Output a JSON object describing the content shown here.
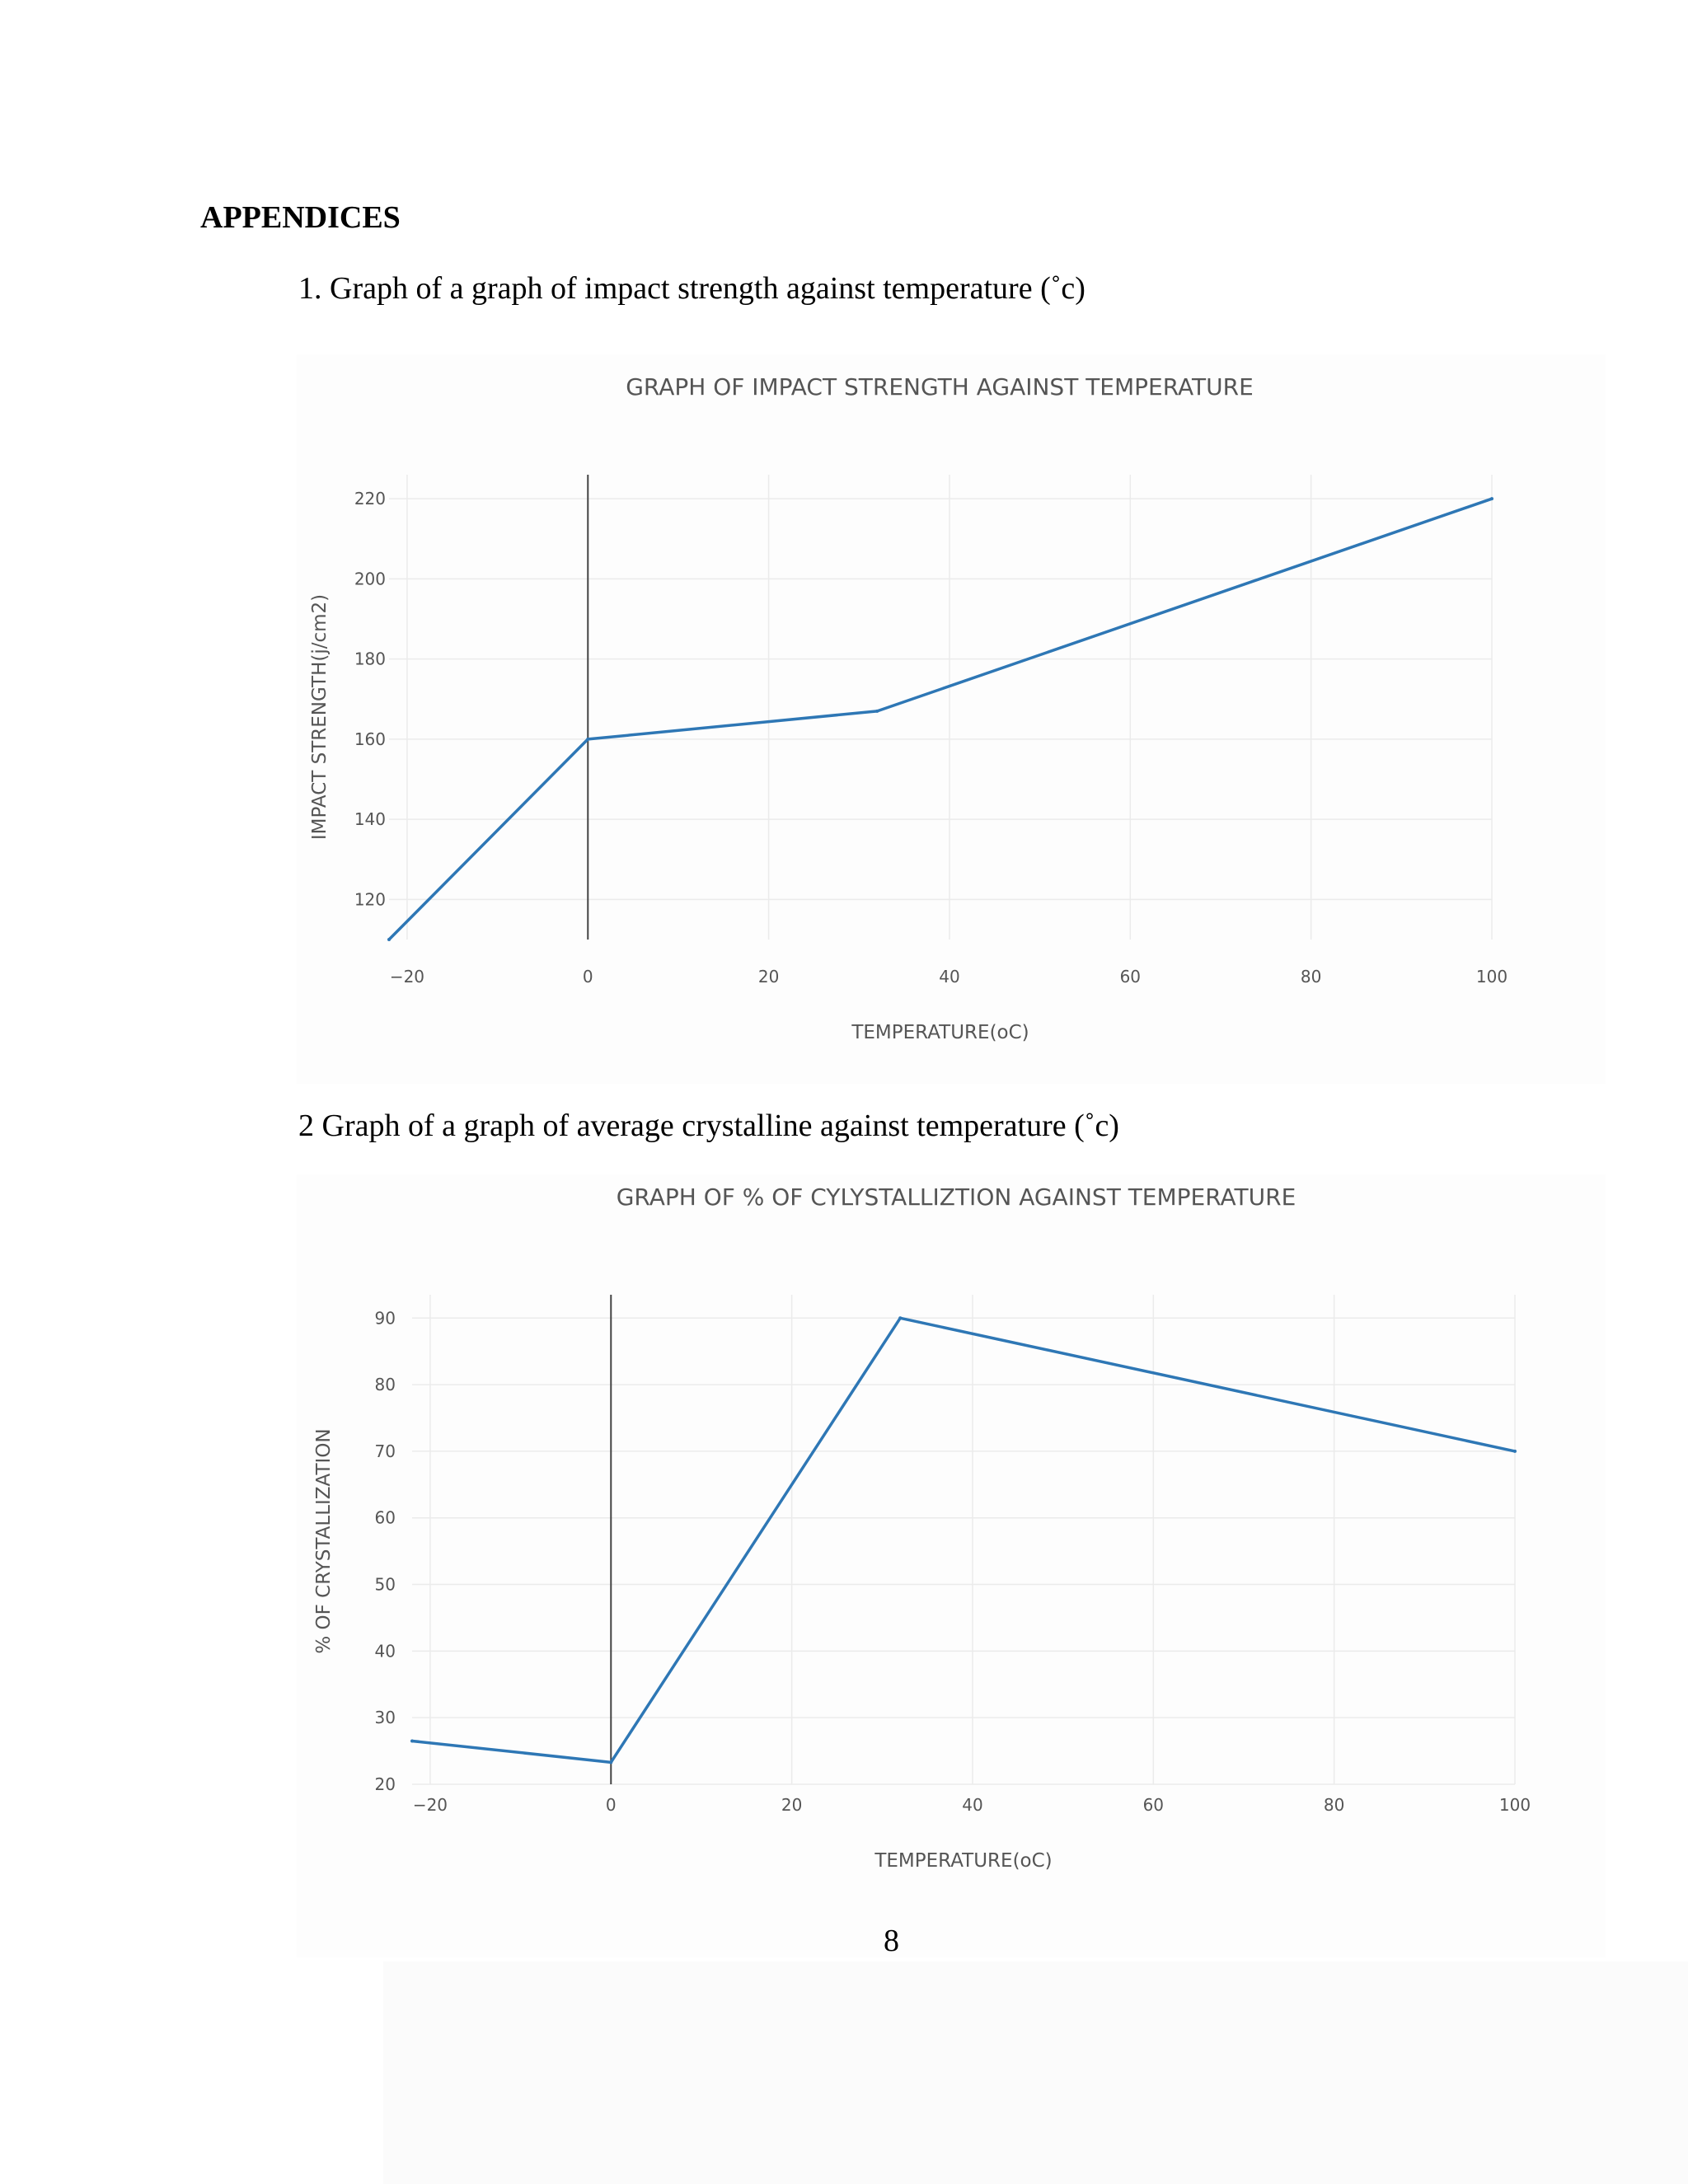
{
  "page": {
    "heading": "APPENDICES",
    "caption1": "1. Graph of a graph of impact strength against temperature (˚c)",
    "caption2": "2 Graph of a graph of average crystalline against temperature (˚c)",
    "page_number": "8"
  },
  "colors": {
    "line": "#2e77b5",
    "grid": "#ebebeb",
    "zero_line": "#444444",
    "tick_text": "#555555",
    "title_text": "#555555"
  },
  "chart_data": [
    {
      "type": "line",
      "title": "GRAPH OF IMPACT STRENGTH AGAINST TEMPERATURE",
      "xlabel": "TEMPERATURE(oC)",
      "ylabel": "IMPACT STRENGTH(j/cm2)",
      "xlim": [
        -22,
        100
      ],
      "ylim": [
        110,
        226
      ],
      "xticks": [
        -20,
        0,
        20,
        40,
        60,
        80,
        100
      ],
      "xtick_labels": [
        "−20",
        "0",
        "20",
        "40",
        "60",
        "80",
        "100"
      ],
      "yticks": [
        120,
        140,
        160,
        180,
        200,
        220
      ],
      "ytick_labels": [
        "120",
        "140",
        "160",
        "180",
        "200",
        "220"
      ],
      "grid": true,
      "x": [
        -22,
        0,
        32,
        100
      ],
      "y": [
        110,
        160,
        167,
        220
      ]
    },
    {
      "type": "line",
      "title": "GRAPH OF % OF CYLYSTALLIZTION AGAINST TEMPERATURE",
      "xlabel": "TEMPERATURE(oC)",
      "ylabel": "% OF CRYSTALLIZATION",
      "xlim": [
        -22,
        100
      ],
      "ylim": [
        20,
        93.5
      ],
      "xticks": [
        -20,
        0,
        20,
        40,
        60,
        80,
        100
      ],
      "xtick_labels": [
        "−20",
        "0",
        "20",
        "40",
        "60",
        "80",
        "100"
      ],
      "yticks": [
        20,
        30,
        40,
        50,
        60,
        70,
        80,
        90
      ],
      "ytick_labels": [
        "20",
        "30",
        "40",
        "50",
        "60",
        "70",
        "80",
        "90"
      ],
      "grid": true,
      "x": [
        -22,
        0,
        32,
        100
      ],
      "y": [
        26.5,
        23.3,
        90,
        70
      ]
    }
  ]
}
